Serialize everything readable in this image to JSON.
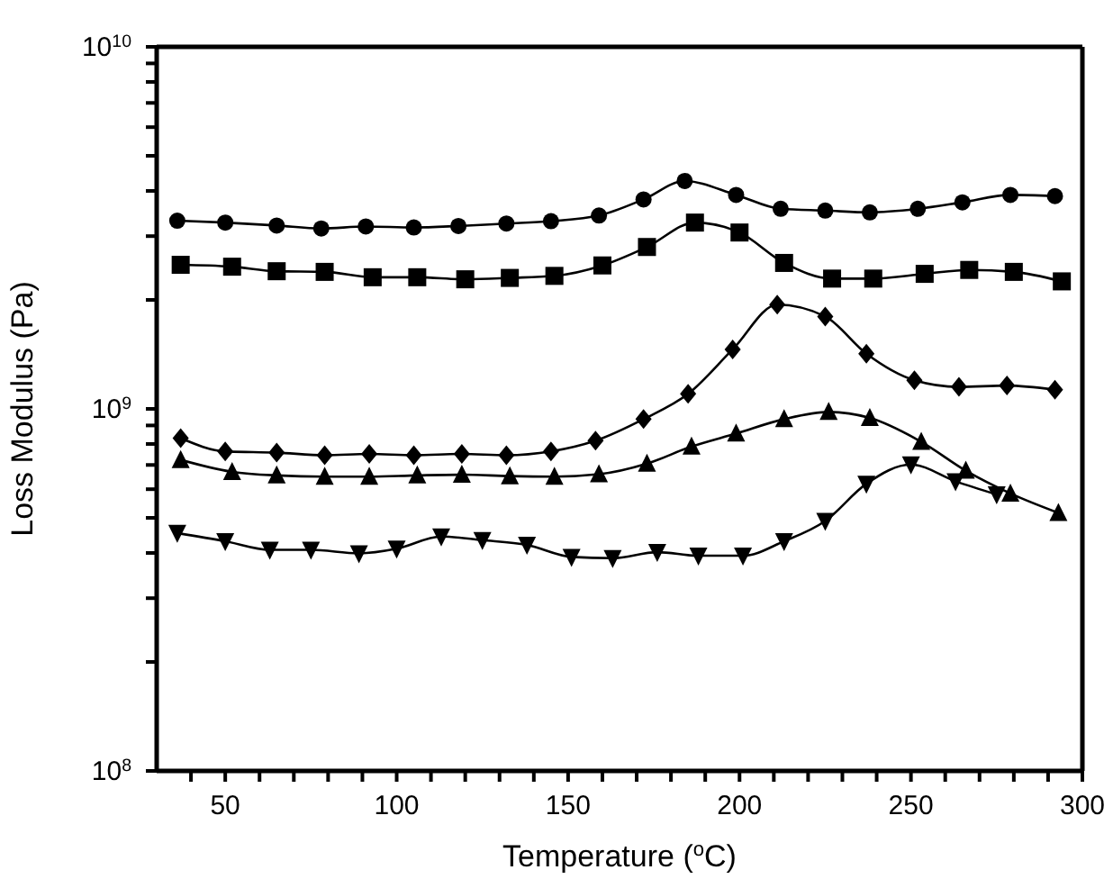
{
  "chart_data": {
    "type": "line",
    "xlabel": "Temperature ($^{o}$C)",
    "ylabel": "Loss Modulus (Pa)",
    "log": "y",
    "line_style": "solid",
    "xlim": [
      30,
      300
    ],
    "ylim": [
      100000000,
      10000000000
    ],
    "xticks": [
      {
        "value": 40,
        "label": null
      },
      50,
      {
        "value": 60,
        "label": null
      },
      {
        "value": 70,
        "label": null
      },
      {
        "value": 80,
        "label": null
      },
      {
        "value": 90,
        "label": null
      },
      100,
      {
        "value": 110,
        "label": null
      },
      {
        "value": 120,
        "label": null
      },
      {
        "value": 130,
        "label": null
      },
      {
        "value": 140,
        "label": null
      },
      150,
      {
        "value": 160,
        "label": null
      },
      {
        "value": 170,
        "label": null
      },
      {
        "value": 180,
        "label": null
      },
      {
        "value": 190,
        "label": null
      },
      200,
      {
        "value": 210,
        "label": null
      },
      {
        "value": 220,
        "label": null
      },
      {
        "value": 230,
        "label": null
      },
      {
        "value": 240,
        "label": null
      },
      250,
      {
        "value": 260,
        "label": null
      },
      {
        "value": 270,
        "label": null
      },
      {
        "value": 280,
        "label": null
      },
      {
        "value": 290,
        "label": null
      },
      300
    ],
    "yticks": [
      {
        "value": 100000000,
        "label": "10$^{8}$"
      },
      {
        "value": 200000000,
        "label": null
      },
      {
        "value": 300000000,
        "label": null
      },
      {
        "value": 400000000,
        "label": null
      },
      {
        "value": 500000000,
        "label": null
      },
      {
        "value": 600000000,
        "label": null
      },
      {
        "value": 700000000,
        "label": null
      },
      {
        "value": 800000000,
        "label": null
      },
      {
        "value": 900000000,
        "label": null
      },
      {
        "value": 1000000000,
        "label": "10$^{9}$"
      },
      {
        "value": 2000000000,
        "label": null
      },
      {
        "value": 3000000000,
        "label": null
      },
      {
        "value": 4000000000,
        "label": null
      },
      {
        "value": 5000000000,
        "label": null
      },
      {
        "value": 6000000000,
        "label": null
      },
      {
        "value": 7000000000,
        "label": null
      },
      {
        "value": 8000000000,
        "label": null
      },
      {
        "value": 9000000000,
        "label": null
      },
      {
        "value": 10000000000,
        "label": "10$^{10}$"
      }
    ],
    "series": [
      {
        "color": "#000000",
        "marker": "circle",
        "x": [
          36,
          50,
          65,
          78,
          91,
          105,
          118,
          132,
          145,
          159,
          172,
          184,
          199,
          212,
          225,
          238,
          252,
          265,
          279,
          292
        ],
        "values": [
          3310000000,
          3270000000,
          3210000000,
          3150000000,
          3190000000,
          3170000000,
          3200000000,
          3250000000,
          3300000000,
          3420000000,
          3790000000,
          4260000000,
          3900000000,
          3570000000,
          3530000000,
          3490000000,
          3570000000,
          3720000000,
          3900000000,
          3870000000
        ]
      },
      {
        "color": "#000000",
        "marker": "square",
        "x": [
          37,
          52,
          65,
          79,
          93,
          106,
          120,
          133,
          146,
          160,
          173,
          187,
          200,
          213,
          227,
          239,
          254,
          267,
          280,
          294
        ],
        "values": [
          2500000000,
          2470000000,
          2400000000,
          2390000000,
          2310000000,
          2310000000,
          2280000000,
          2300000000,
          2330000000,
          2490000000,
          2800000000,
          3270000000,
          3070000000,
          2530000000,
          2290000000,
          2290000000,
          2360000000,
          2420000000,
          2390000000,
          2250000000
        ]
      },
      {
        "color": "#000000",
        "marker": "diamond",
        "x": [
          37,
          50,
          65,
          79,
          92,
          105,
          119,
          132,
          145,
          158,
          172,
          185,
          198,
          211,
          225,
          237,
          251,
          264,
          278,
          292
        ],
        "values": [
          830000000,
          763000000,
          757000000,
          745000000,
          751000000,
          745000000,
          751000000,
          745000000,
          763000000,
          817000000,
          937000000,
          1100000000,
          1460000000,
          1940000000,
          1800000000,
          1420000000,
          1200000000,
          1150000000,
          1160000000,
          1130000000
        ]
      },
      {
        "color": "#000000",
        "marker": "triangle",
        "x": [
          37,
          52,
          65,
          79,
          92,
          106,
          119,
          133,
          146,
          159,
          173,
          186,
          199,
          213,
          226,
          238,
          253,
          266,
          279,
          293
        ],
        "values": [
          723000000,
          670000000,
          655000000,
          650000000,
          650000000,
          655000000,
          658000000,
          652000000,
          650000000,
          660000000,
          706000000,
          787000000,
          855000000,
          937000000,
          981000000,
          944000000,
          811000000,
          675000000,
          584000000,
          516000000
        ]
      },
      {
        "color": "#000000",
        "marker": "triangle_down",
        "x": [
          36,
          50,
          63,
          75,
          89,
          100,
          113,
          125,
          138,
          151,
          163,
          176,
          188,
          201,
          213,
          225,
          237,
          250,
          263,
          275
        ],
        "values": [
          454000000,
          431000000,
          408000000,
          408000000,
          399000000,
          411000000,
          444000000,
          434000000,
          421000000,
          390000000,
          387000000,
          402000000,
          393000000,
          393000000,
          431000000,
          490000000,
          621000000,
          702000000,
          631000000,
          580000000
        ]
      }
    ]
  }
}
